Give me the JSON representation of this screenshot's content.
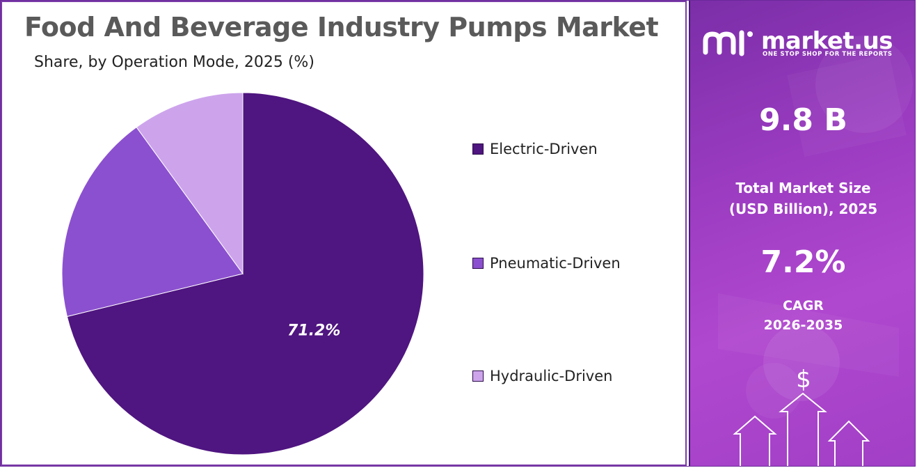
{
  "chart_data": {
    "type": "pie",
    "title": "Food And Beverage Industry Pumps Market",
    "subtitle": "Share, by Operation Mode, 2025 (%)",
    "categories": [
      "Electric-Driven",
      "Pneumatic-Driven",
      "Hydraulic-Driven"
    ],
    "values": [
      71.2,
      18.8,
      10.0
    ],
    "data_labels": [
      "71.2%",
      "",
      ""
    ],
    "colors": [
      "#4f1580",
      "#8b50cf",
      "#cda4ec"
    ],
    "legend_position": "right"
  },
  "sidebar": {
    "brand_name": "market.us",
    "brand_tagline": "ONE STOP SHOP FOR THE REPORTS",
    "market_size_value": "9.8 B",
    "market_size_label_line1": "Total Market Size",
    "market_size_label_line2": "(USD Billion), 2025",
    "cagr_value": "7.2%",
    "cagr_label_line1": "CAGR",
    "cagr_label_line2": "2026-2035",
    "dollar_symbol": "$"
  }
}
